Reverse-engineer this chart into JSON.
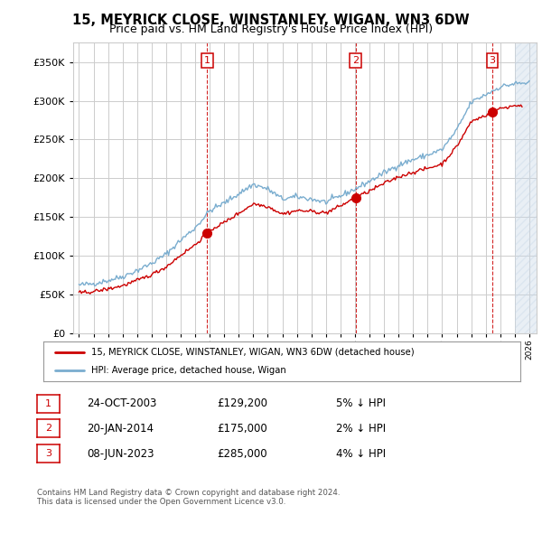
{
  "title": "15, MEYRICK CLOSE, WINSTANLEY, WIGAN, WN3 6DW",
  "subtitle": "Price paid vs. HM Land Registry's House Price Index (HPI)",
  "title_fontsize": 10.5,
  "subtitle_fontsize": 9,
  "ylabel_values": [
    0,
    50000,
    100000,
    150000,
    200000,
    250000,
    300000,
    350000
  ],
  "ylim": [
    0,
    375000
  ],
  "xlim_start": 1994.6,
  "xlim_end": 2026.5,
  "sales": [
    {
      "num": 1,
      "year": 2003.82,
      "price": 129200,
      "date": "24-OCT-2003",
      "pct": "5%",
      "dir": "↓"
    },
    {
      "num": 2,
      "year": 2014.05,
      "price": 175000,
      "date": "20-JAN-2014",
      "pct": "2%",
      "dir": "↓"
    },
    {
      "num": 3,
      "year": 2023.44,
      "price": 285000,
      "date": "08-JUN-2023",
      "pct": "4%",
      "dir": "↓"
    }
  ],
  "hpi_line_color": "#7aadcf",
  "price_line_color": "#cc0000",
  "sale_marker_color": "#cc0000",
  "dashed_line_color": "#cc0000",
  "background_color": "#ffffff",
  "grid_color": "#cccccc",
  "legend_label_red": "15, MEYRICK CLOSE, WINSTANLEY, WIGAN, WN3 6DW (detached house)",
  "legend_label_blue": "HPI: Average price, detached house, Wigan",
  "footer1": "Contains HM Land Registry data © Crown copyright and database right 2024.",
  "footer2": "This data is licensed under the Open Government Licence v3.0.",
  "hatch_color": "#c8d8e8",
  "hatch_alpha": 0.4
}
